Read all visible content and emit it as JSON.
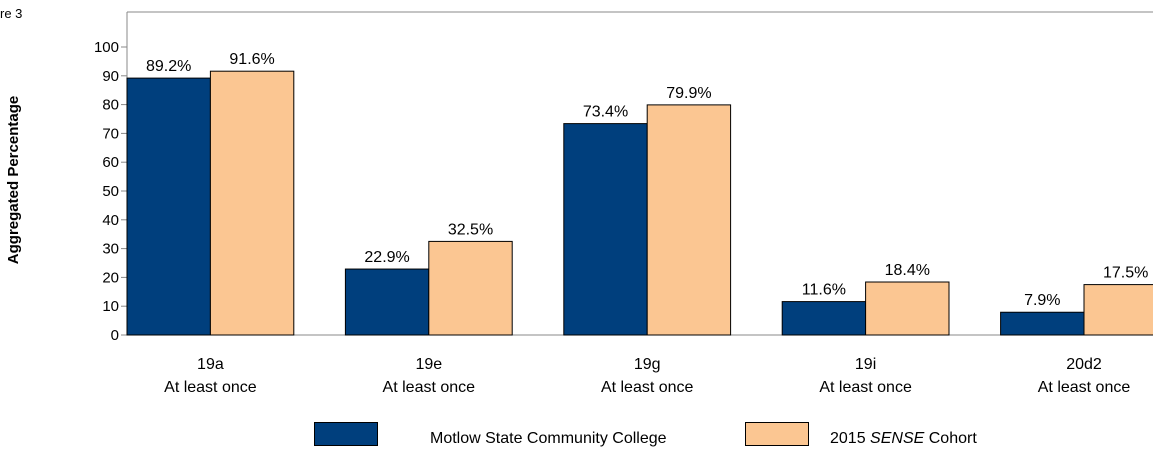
{
  "corner_label": "re 3",
  "chart_data": {
    "type": "bar",
    "ylabel": "Aggregated Percentage",
    "ylim": [
      0,
      100
    ],
    "yticks": [
      0,
      10,
      20,
      30,
      40,
      50,
      60,
      70,
      80,
      90,
      100
    ],
    "grid": false,
    "categories": [
      {
        "code": "19a",
        "sub": "At least once"
      },
      {
        "code": "19e",
        "sub": "At least once"
      },
      {
        "code": "19g",
        "sub": "At least once"
      },
      {
        "code": "19i",
        "sub": "At least once"
      },
      {
        "code": "20d2",
        "sub": "At least once"
      }
    ],
    "series": [
      {
        "name": "Motlow State Community College",
        "color": "#003F7D",
        "values": [
          89.2,
          22.9,
          73.4,
          11.6,
          7.9
        ],
        "labels": [
          "89.2%",
          "22.9%",
          "73.4%",
          "11.6%",
          "7.9%"
        ]
      },
      {
        "name": "2015 SENSE Cohort",
        "name_prefix": "2015 ",
        "name_italic": "SENSE",
        "name_suffix": " Cohort",
        "color": "#FBC692",
        "values": [
          91.6,
          32.5,
          79.9,
          18.4,
          17.5
        ],
        "labels": [
          "91.6%",
          "32.5%",
          "79.9%",
          "18.4%",
          "17.5%"
        ]
      }
    ],
    "legend_position": "bottom"
  }
}
